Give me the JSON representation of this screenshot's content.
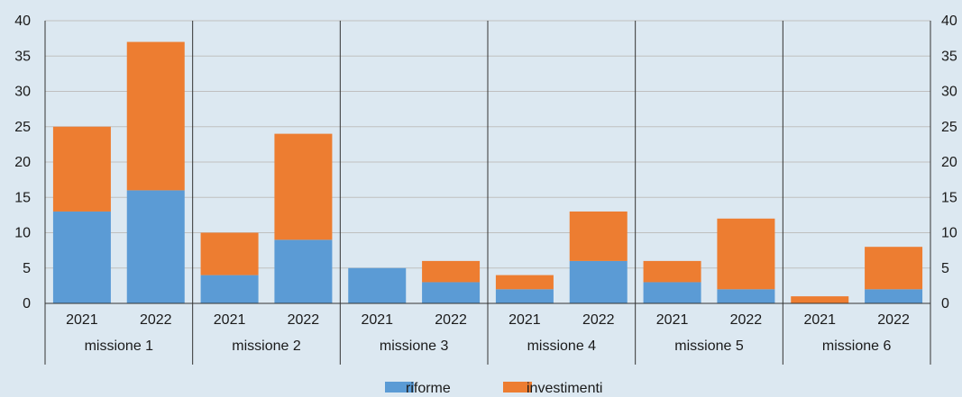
{
  "chart_data": {
    "type": "bar",
    "stacked": true,
    "groups": [
      "missione 1",
      "missione 2",
      "missione 3",
      "missione 4",
      "missione 5",
      "missione 6"
    ],
    "years": [
      "2021",
      "2022"
    ],
    "categories": [
      "missione 1 2021",
      "missione 1 2022",
      "missione 2 2021",
      "missione 2 2022",
      "missione 3 2021",
      "missione 3 2022",
      "missione 4 2021",
      "missione 4 2022",
      "missione 5 2021",
      "missione 5 2022",
      "missione 6 2021",
      "missione 6 2022"
    ],
    "series": [
      {
        "name": "riforme",
        "color": "#5b9bd5",
        "values": [
          13,
          16,
          4,
          9,
          5,
          3,
          2,
          6,
          3,
          2,
          0,
          2
        ]
      },
      {
        "name": "investimenti",
        "color": "#ed7d31",
        "values": [
          12,
          21,
          6,
          15,
          0,
          3,
          2,
          7,
          3,
          10,
          1,
          6
        ]
      }
    ],
    "yticks": [
      "0",
      "5",
      "10",
      "15",
      "20",
      "25",
      "30",
      "35",
      "40"
    ],
    "ylim": [
      0,
      40
    ],
    "grid": true,
    "legend_position": "bottom",
    "title": "",
    "xlabel": "",
    "ylabel": ""
  }
}
